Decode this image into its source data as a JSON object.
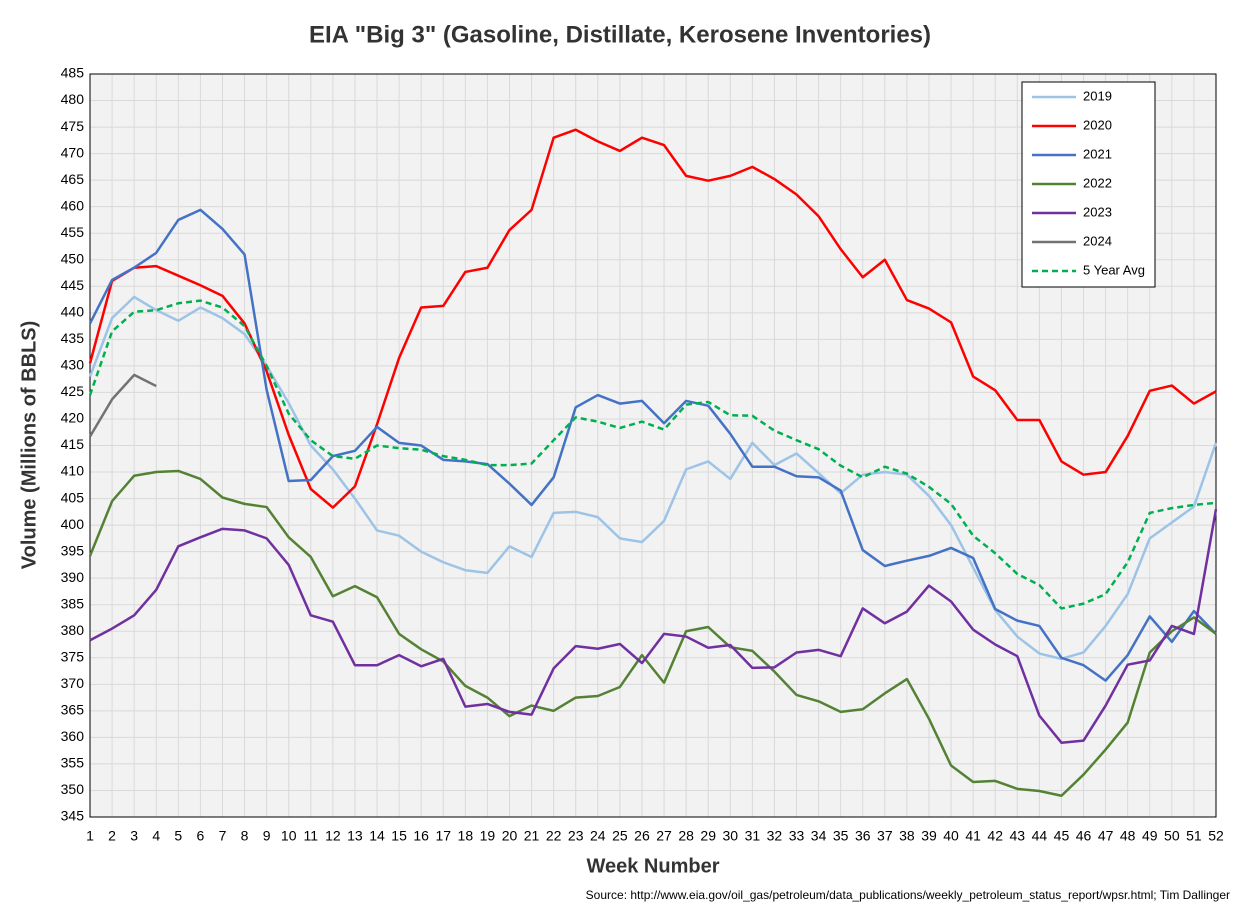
{
  "chart_data": {
    "type": "line",
    "title": "EIA \"Big 3\" (Gasoline, Distillate, Kerosene Inventories)",
    "x_label": "Week Number",
    "y_label": "Volume (Millions of BBLS)",
    "source": "Source: http://www.eia.gov/oil_gas/petroleum/data_publications/weekly_petroleum_status_report/wpsr.html; Tim Dallinger",
    "x": [
      1,
      2,
      3,
      4,
      5,
      6,
      7,
      8,
      9,
      10,
      11,
      12,
      13,
      14,
      15,
      16,
      17,
      18,
      19,
      20,
      21,
      22,
      23,
      24,
      25,
      26,
      27,
      28,
      29,
      30,
      31,
      32,
      33,
      34,
      35,
      36,
      37,
      38,
      39,
      40,
      41,
      42,
      43,
      44,
      45,
      46,
      47,
      48,
      49,
      50,
      51,
      52
    ],
    "xlim": [
      1,
      52
    ],
    "ylim": [
      345,
      485
    ],
    "yticks": [
      345,
      350,
      355,
      360,
      365,
      370,
      375,
      380,
      385,
      390,
      395,
      400,
      405,
      410,
      415,
      420,
      425,
      430,
      435,
      440,
      445,
      450,
      455,
      460,
      465,
      470,
      475,
      480,
      485
    ],
    "grid": true,
    "legend": "top-right",
    "series": [
      {
        "name": "2019",
        "color": "#9dc3e6",
        "style": "solid",
        "values": [
          428,
          439,
          443,
          440.5,
          438.5,
          441,
          439,
          436,
          430,
          423,
          415,
          410.5,
          405,
          399,
          398,
          395,
          393,
          391.5,
          391,
          396,
          394,
          402.3,
          402.5,
          401.5,
          397.5,
          396.8,
          400.8,
          410.5,
          412,
          408.7,
          415.5,
          411.3,
          413.5,
          409.8,
          406,
          409.5,
          410,
          409.5,
          405.5,
          400,
          392,
          384,
          379,
          375.8,
          374.8,
          376,
          381,
          387,
          397.5,
          400.5,
          403.5,
          415.5
        ]
      },
      {
        "name": "2020",
        "color": "#ff0000",
        "style": "solid",
        "values": [
          430.5,
          446,
          448.5,
          448.8,
          447,
          445.2,
          443.2,
          438,
          429,
          417,
          406.8,
          403.3,
          407.3,
          419,
          431.5,
          441,
          441.3,
          447.7,
          448.5,
          455.6,
          459.4,
          473,
          474.5,
          472.3,
          470.5,
          473,
          471.6,
          465.8,
          464.9,
          465.8,
          467.5,
          465.2,
          462.3,
          458.2,
          452,
          446.7,
          450,
          442.4,
          440.8,
          438.2,
          428,
          425.4,
          419.8,
          419.8,
          412,
          409.5,
          410,
          416.8,
          425.3,
          426.3,
          422.9,
          425.2
        ]
      },
      {
        "name": "2021",
        "color": "#4472c4",
        "style": "solid",
        "values": [
          438,
          446.2,
          448.5,
          451.3,
          457.5,
          459.4,
          455.8,
          451,
          425.5,
          408.3,
          408.5,
          413,
          414,
          418.5,
          415.5,
          415,
          412.3,
          412,
          411.5,
          407.8,
          403.8,
          409,
          422.2,
          424.5,
          422.9,
          423.4,
          419.2,
          423.4,
          422.5,
          417.2,
          411,
          411,
          409.2,
          409,
          406.5,
          395.3,
          392.3,
          393.3,
          394.2,
          395.7,
          393.8,
          384.2,
          382,
          381,
          375,
          373.6,
          370.7,
          375.5,
          382.8,
          378,
          383.8,
          379.5
        ]
      },
      {
        "name": "2022",
        "color": "#548235",
        "style": "solid",
        "values": [
          394.2,
          404.5,
          409.3,
          410,
          410.2,
          408.7,
          405.2,
          404,
          403.4,
          397.7,
          394,
          386.6,
          388.5,
          386.4,
          379.5,
          376.6,
          374.3,
          369.7,
          367.5,
          364,
          366,
          365,
          367.5,
          367.8,
          369.5,
          375.5,
          370.3,
          380,
          380.8,
          377,
          376.3,
          372.4,
          368,
          366.8,
          364.8,
          365.3,
          368.3,
          371,
          363.5,
          354.7,
          351.6,
          351.8,
          350.3,
          349.9,
          349,
          353,
          357.7,
          362.8,
          376,
          380,
          382.6,
          379.5
        ]
      },
      {
        "name": "2023",
        "color": "#7030a0",
        "style": "solid",
        "values": [
          378.3,
          380.5,
          383,
          387.8,
          396,
          397.7,
          399.3,
          399,
          397.5,
          392.5,
          383,
          381.8,
          373.6,
          373.6,
          375.5,
          373.4,
          374.8,
          365.8,
          366.3,
          364.8,
          364.3,
          373,
          377.2,
          376.7,
          377.6,
          374,
          379.5,
          379,
          376.9,
          377.4,
          373.1,
          373.2,
          376,
          376.5,
          375.3,
          384.3,
          381.5,
          383.7,
          388.6,
          385.6,
          380.3,
          377.5,
          375.3,
          364.1,
          359,
          359.4,
          366,
          373.7,
          374.5,
          381,
          379.5,
          403
        ]
      },
      {
        "name": "2024",
        "color": "#767171",
        "style": "solid",
        "values": [
          416.7,
          423.7,
          428.3,
          426.2,
          null,
          null,
          null,
          null,
          null,
          null,
          null,
          null,
          null,
          null,
          null,
          null,
          null,
          null,
          null,
          null,
          null,
          null,
          null,
          null,
          null,
          null,
          null,
          null,
          null,
          null,
          null,
          null,
          null,
          null,
          null,
          null,
          null,
          null,
          null,
          null,
          null,
          null,
          null,
          null,
          null,
          null,
          null,
          null,
          null,
          null,
          null,
          null
        ]
      },
      {
        "name": "5 Year Avg",
        "color": "#00b050",
        "style": "dashed",
        "values": [
          424.5,
          436.5,
          440.2,
          440.5,
          441.8,
          442.3,
          441,
          437.5,
          430,
          421,
          416,
          413,
          412.5,
          415,
          414.5,
          414.2,
          413,
          412.3,
          411.3,
          411.3,
          411.6,
          416,
          420.3,
          419.5,
          418.3,
          419.5,
          418,
          422.7,
          423.2,
          420.7,
          420.6,
          417.8,
          416,
          414.3,
          411.2,
          409,
          411,
          409.7,
          407.2,
          404,
          398,
          394.7,
          390.8,
          388.7,
          384.3,
          385.2,
          387,
          393,
          402.3,
          403.2,
          403.8,
          404.2
        ]
      }
    ]
  }
}
